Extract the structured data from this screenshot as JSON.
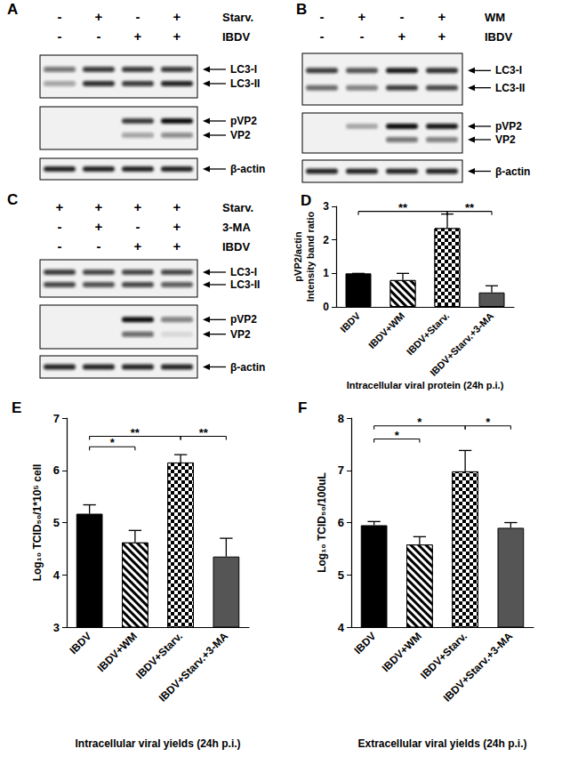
{
  "panels": [
    {
      "title": "A",
      "conditions": [
        {
          "name": "Starv.",
          "signs": [
            "-",
            "+",
            "-",
            "+"
          ]
        },
        {
          "name": "IBDV",
          "signs": [
            "-",
            "-",
            "+",
            "+"
          ]
        }
      ],
      "blots": [
        {
          "labels": [
            "LC3-I",
            "LC3-II"
          ],
          "bands": [
            [
              0.55,
              0.8,
              0.8,
              0.8
            ],
            [
              0.35,
              0.85,
              0.8,
              0.9
            ]
          ]
        },
        {
          "labels": [
            "pVP2",
            "VP2"
          ],
          "bands": [
            [
              0,
              0,
              0.8,
              1
            ],
            [
              0,
              0,
              0.35,
              0.45
            ]
          ]
        },
        {
          "labels": [
            "β-actin"
          ],
          "bands": [
            [
              0.9,
              0.9,
              0.9,
              0.9
            ]
          ]
        }
      ]
    },
    {
      "title": "B",
      "conditions": [
        {
          "name": "WM",
          "signs": [
            "-",
            "+",
            "-",
            "+"
          ]
        },
        {
          "name": "IBDV",
          "signs": [
            "-",
            "-",
            "+",
            "+"
          ]
        }
      ],
      "blots": [
        {
          "labels": [
            "LC3-I",
            "LC3-II"
          ],
          "bands": [
            [
              0.8,
              0.7,
              0.95,
              0.85
            ],
            [
              0.6,
              0.5,
              0.8,
              0.75
            ]
          ]
        },
        {
          "labels": [
            "pVP2",
            "VP2"
          ],
          "bands": [
            [
              0,
              0.3,
              1,
              0.95
            ],
            [
              0,
              0,
              0.55,
              0.5
            ]
          ]
        },
        {
          "labels": [
            "β-actin"
          ],
          "bands": [
            [
              0.9,
              0.9,
              0.9,
              0.9
            ]
          ]
        }
      ]
    },
    {
      "title": "C",
      "conditions": [
        {
          "name": "Starv.",
          "signs": [
            "+",
            "+",
            "+",
            "+"
          ]
        },
        {
          "name": "3-MA",
          "signs": [
            "-",
            "+",
            "-",
            "+"
          ]
        },
        {
          "name": "IBDV",
          "signs": [
            "-",
            "-",
            "+",
            "+"
          ]
        }
      ],
      "blots": [
        {
          "labels": [
            "LC3-I",
            "LC3-II"
          ],
          "bands": [
            [
              0.8,
              0.75,
              0.75,
              0.75
            ],
            [
              0.75,
              0.7,
              0.75,
              0.65
            ]
          ]
        },
        {
          "labels": [
            "pVP2",
            "VP2"
          ],
          "bands": [
            [
              0,
              0,
              1,
              0.5
            ],
            [
              0,
              0,
              0.6,
              0.1
            ]
          ]
        },
        {
          "labels": [
            "β-actin"
          ],
          "bands": [
            [
              0.9,
              0.9,
              0.9,
              0.9
            ]
          ]
        }
      ]
    }
  ],
  "chart_data": [
    {
      "type": "bar",
      "title": "D",
      "ylabel": "pVP2/actin\nIntensity band ratio",
      "xlabel": "Intracellular viral protein (24h p.i.)",
      "categories": [
        "IBDV",
        "IBDV+WM",
        "IBDV+Starv.",
        "IBDV+Starv.+3-MA"
      ],
      "values": [
        1,
        0.8,
        2.35,
        0.43
      ],
      "errors": [
        0,
        0.2,
        0.42,
        0.2
      ],
      "colors": [
        "#000000",
        "#000000",
        "#000000",
        "#555555"
      ],
      "ylim": [
        0,
        3
      ],
      "yticks": [
        0,
        1,
        2,
        3
      ],
      "grid": false,
      "annotations": [
        {
          "from": 0,
          "to": 2,
          "y": 2.85,
          "text": "**"
        },
        {
          "from": 2,
          "to": 3,
          "y": 2.85,
          "text": "**"
        }
      ]
    },
    {
      "type": "bar",
      "title": "E",
      "ylabel": "Log₁₀ TCID₅₀/1*10⁵ cell",
      "xlabel": "Intracellular viral yields (24h p.i.)",
      "categories": [
        "IBDV",
        "IBDV+WM",
        "IBDV+Starv.",
        "IBDV+Starv.+3-MA"
      ],
      "values": [
        5.17,
        4.62,
        6.15,
        4.35
      ],
      "errors": [
        0.17,
        0.23,
        0.15,
        0.35
      ],
      "colors": [
        "#000000",
        "#000000",
        "#000000",
        "#555555"
      ],
      "ylim": [
        3,
        7
      ],
      "yticks": [
        3,
        4,
        5,
        6,
        7
      ],
      "grid": false,
      "annotations": [
        {
          "from": 0,
          "to": 1,
          "y": 6.45,
          "text": "*"
        },
        {
          "from": 0,
          "to": 2,
          "y": 6.65,
          "text": "**"
        },
        {
          "from": 2,
          "to": 3,
          "y": 6.65,
          "text": "**"
        }
      ]
    },
    {
      "type": "bar",
      "title": "F",
      "ylabel": "Log₁₀ TCID₅₀/100uL",
      "xlabel": "Extracellular viral yields (24h p.i.)",
      "categories": [
        "IBDV",
        "IBDV+WM",
        "IBDV+Starv.",
        "IBDV+Starv.+3-MA"
      ],
      "values": [
        5.95,
        5.58,
        6.98,
        5.9
      ],
      "errors": [
        0.07,
        0.15,
        0.4,
        0.1
      ],
      "colors": [
        "#000000",
        "#000000",
        "#000000",
        "#555555"
      ],
      "ylim": [
        4,
        8
      ],
      "yticks": [
        4,
        5,
        6,
        7,
        8
      ],
      "grid": false,
      "annotations": [
        {
          "from": 0,
          "to": 1,
          "y": 7.6,
          "text": "*"
        },
        {
          "from": 0,
          "to": 2,
          "y": 7.85,
          "text": "*"
        },
        {
          "from": 2,
          "to": 3,
          "y": 7.85,
          "text": "*"
        }
      ]
    }
  ]
}
